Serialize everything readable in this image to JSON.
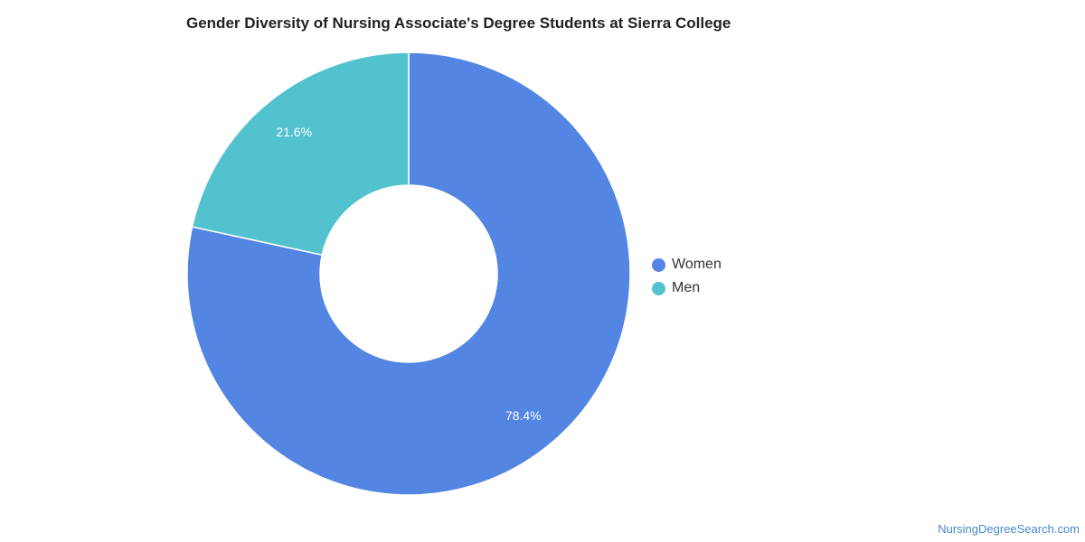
{
  "title": "Gender Diversity of Nursing Associate's Degree Students at Sierra College",
  "watermark": "NursingDegreeSearch.com",
  "colors": {
    "women": "#5385e3",
    "men": "#52c2cf"
  },
  "chart_data": {
    "type": "pie",
    "variant": "donut",
    "title": "Gender Diversity of Nursing Associate's Degree Students at Sierra College",
    "categories": [
      "Women",
      "Men"
    ],
    "values": [
      78.4,
      21.6
    ],
    "data_labels": [
      "78.4%",
      "21.6%"
    ],
    "legend_position": "right"
  },
  "legend": [
    {
      "label": "Women"
    },
    {
      "label": "Men"
    }
  ]
}
